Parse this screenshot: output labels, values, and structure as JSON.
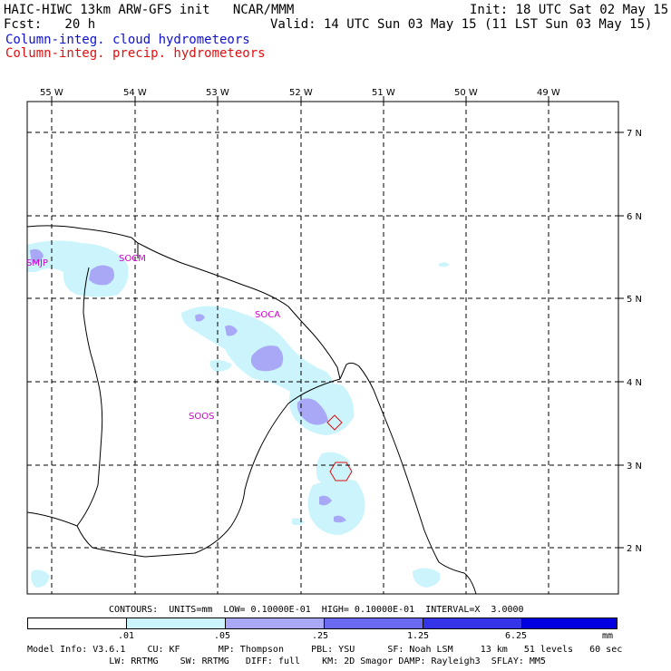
{
  "header": {
    "line1_left": "HAIC-HIWC 13km ARW-GFS init   NCAR/MMM",
    "line1_right": "Init: 18 UTC Sat 02 May 15",
    "line2_left": "Fcst:   20 h",
    "line2_right": "Valid: 14 UTC Sun 03 May 15 (11 LST Sun 03 May 15)",
    "field1": "Column-integ. cloud hydrometeors",
    "field2": "Column-integ. precip. hydrometeors"
  },
  "map": {
    "longitude_labels": [
      "55 W",
      "54 W",
      "53 W",
      "52 W",
      "51 W",
      "50 W",
      "49 W"
    ],
    "latitude_labels": [
      "7 N",
      "6 N",
      "5 N",
      "4 N",
      "3 N",
      "2 N"
    ],
    "stations": [
      "SMJP",
      "SOCM",
      "SOCA",
      "SOOS"
    ],
    "colors": {
      "cloud_light": "#ccf4fc",
      "cloud_mid": "#a8a8f6",
      "precip_contour": "#e01010",
      "grid": "#000000"
    }
  },
  "contour_info": "CONTOURS:  UNITS=mm  LOW= 0.10000E-01  HIGH= 0.10000E-01  INTERVAL=X  3.0000",
  "colorbar": {
    "labels": [
      ".01",
      ".05",
      ".25",
      "1.25",
      "6.25",
      "mm"
    ],
    "colors": [
      "#ffffff",
      "#ccf4fc",
      "#a8a8f6",
      "#6a6af0",
      "#3434e8",
      "#0000e0"
    ]
  },
  "footer": {
    "line1": "Model Info: V3.6.1    CU: KF       MP: Thompson     PBL: YSU      SF: Noah LSM     13 km   51 levels   60 sec",
    "line2": "               LW: RRTMG    SW: RRTMG   DIFF: full    KM: 2D Smagor DAMP: Rayleigh3  SFLAY: MM5"
  }
}
